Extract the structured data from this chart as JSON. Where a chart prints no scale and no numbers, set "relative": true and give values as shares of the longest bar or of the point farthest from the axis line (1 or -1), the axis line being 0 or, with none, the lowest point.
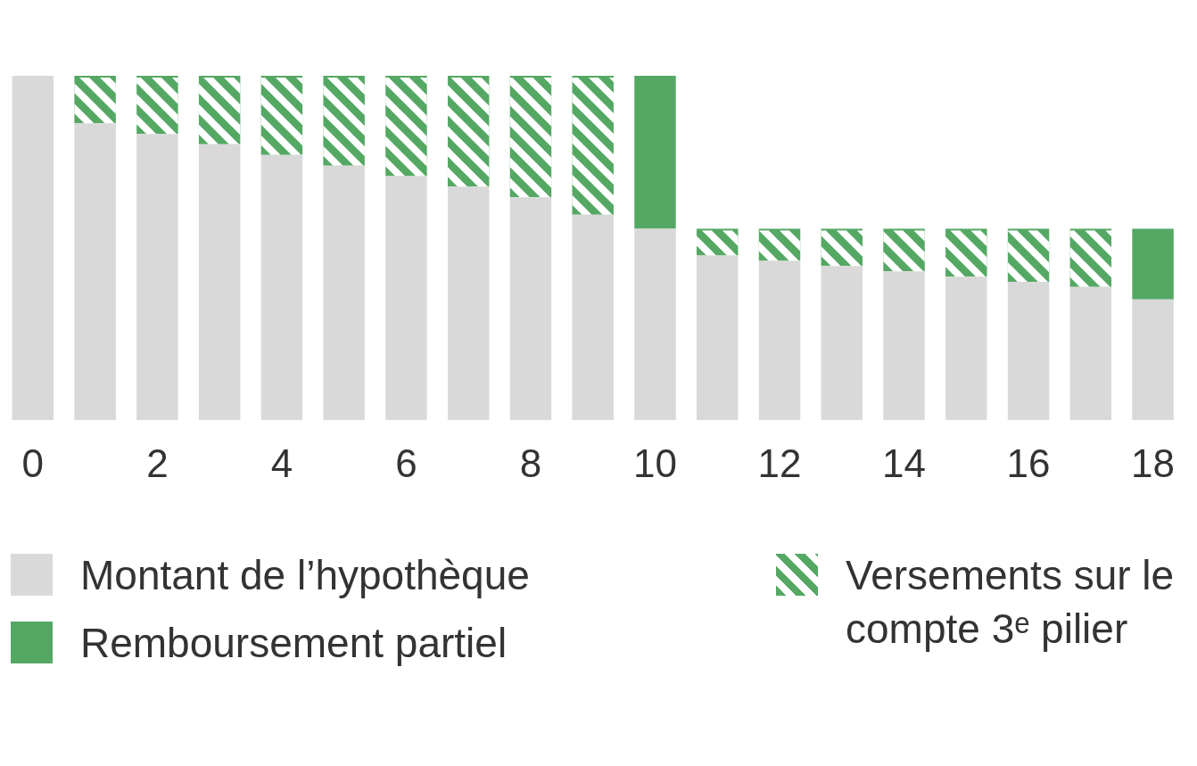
{
  "chart_data": {
    "type": "bar",
    "stacked": true,
    "relative": true,
    "legend": "bottom",
    "categories": [
      "0",
      null,
      "2",
      null,
      "4",
      null,
      "6",
      null,
      "8",
      null,
      "10",
      null,
      "12",
      null,
      "14",
      null,
      "16",
      null,
      "18"
    ],
    "series": [
      {
        "name": "Montant de l’hypothèque",
        "color": "#d9d9d9",
        "values": [
          1,
          0.862,
          0.831,
          0.801,
          0.77,
          0.739,
          0.709,
          0.678,
          0.647,
          0.597,
          0.556,
          0.478,
          0.463,
          0.448,
          0.432,
          0.417,
          0.402,
          0.387,
          0.351
        ]
      },
      {
        "name": "Remboursement partiel",
        "color": "#55a864",
        "values": [
          null,
          null,
          null,
          null,
          null,
          null,
          null,
          null,
          null,
          null,
          0.444,
          null,
          null,
          null,
          null,
          null,
          null,
          null,
          0.205
        ]
      },
      {
        "name": "Versements sur le compte 3ᵉ pilier",
        "color": "#55a864",
        "values": [
          null,
          0.138,
          0.169,
          0.199,
          0.23,
          0.261,
          0.291,
          0.322,
          0.353,
          0.403,
          null,
          0.078,
          0.093,
          0.108,
          0.124,
          0.139,
          0.154,
          0.169,
          null
        ]
      }
    ]
  }
}
